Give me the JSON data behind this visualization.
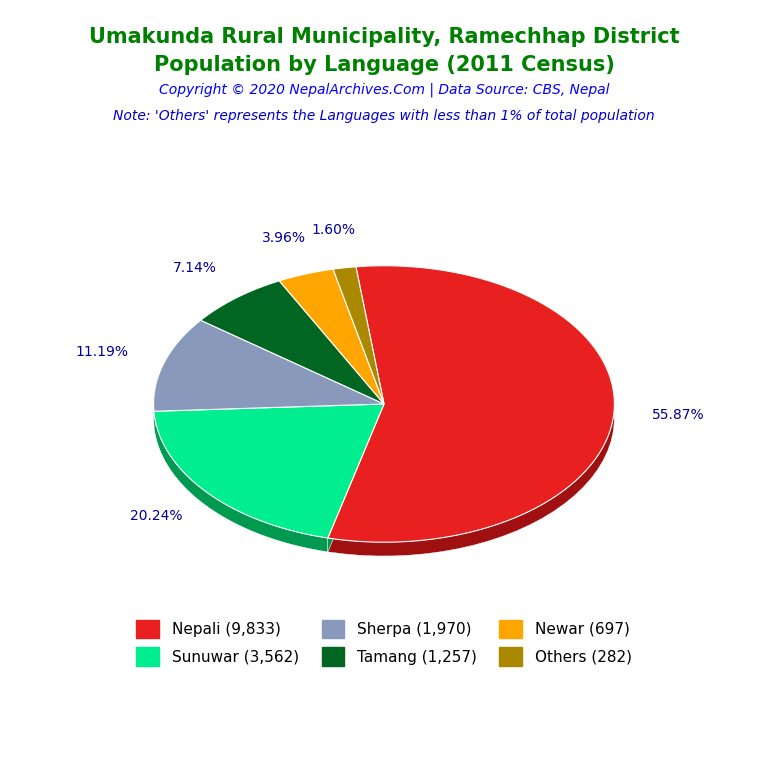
{
  "title_line1": "Umakunda Rural Municipality, Ramechhap District",
  "title_line2": "Population by Language (2011 Census)",
  "title_color": "#008000",
  "copyright_text": "Copyright © 2020 NepalArchives.Com | Data Source: CBS, Nepal",
  "copyright_color": "#0000FF",
  "note_text": "Note: 'Others' represents the Languages with less than 1% of total population",
  "note_color": "#0000CD",
  "labels": [
    "Nepali",
    "Sunuwar",
    "Sherpa",
    "Tamang",
    "Newar",
    "Others"
  ],
  "values": [
    9833,
    3562,
    1970,
    1257,
    697,
    282
  ],
  "percentages": [
    "55.87%",
    "20.24%",
    "11.19%",
    "7.14%",
    "3.96%",
    "1.60%"
  ],
  "colors": [
    "#E82020",
    "#00EE90",
    "#8899BB",
    "#006622",
    "#FFA500",
    "#AA8800"
  ],
  "dark_colors": [
    "#A01010",
    "#009950",
    "#556688",
    "#003311",
    "#CC7700",
    "#776600"
  ],
  "legend_labels": [
    "Nepali (9,833)",
    "Sunuwar (3,562)",
    "Sherpa (1,970)",
    "Tamang (1,257)",
    "Newar (697)",
    "Others (282)"
  ],
  "pct_color": "#000099",
  "startangle": 97,
  "extrude_depth": 0.06,
  "figsize": [
    7.68,
    7.68
  ],
  "dpi": 100
}
